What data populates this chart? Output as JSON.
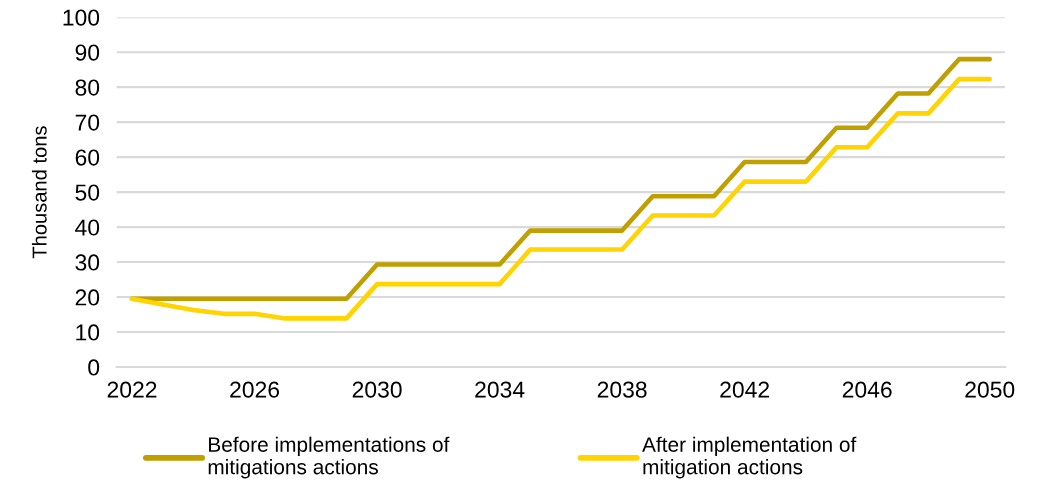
{
  "chart_data": {
    "type": "line",
    "ylabel": "Thousand tons",
    "categories": [
      "2022",
      null,
      null,
      null,
      "2026",
      null,
      null,
      null,
      "2030",
      null,
      null,
      null,
      "2034",
      null,
      null,
      null,
      "2038",
      null,
      null,
      null,
      "2042",
      null,
      null,
      null,
      "2046",
      null,
      null,
      null,
      "2050"
    ],
    "series": [
      {
        "name": "Before implementations of\nmitigations actions",
        "color": "#bfa000",
        "values": [
          19.5,
          19.5,
          19.5,
          19.5,
          19.5,
          19.5,
          19.5,
          19.5,
          29.3,
          29.3,
          29.3,
          29.3,
          29.3,
          39.0,
          39.0,
          39.0,
          39.0,
          48.8,
          48.8,
          48.8,
          58.6,
          58.6,
          58.6,
          68.4,
          68.4,
          78.2,
          78.2,
          88.0,
          88.0
        ]
      },
      {
        "name": "After implementation of\nmitigation actions",
        "color": "#ffd400",
        "values": [
          19.5,
          17.9,
          16.3,
          15.2,
          15.2,
          13.9,
          13.9,
          13.9,
          23.7,
          23.7,
          23.7,
          23.7,
          23.7,
          33.6,
          33.6,
          33.6,
          33.6,
          43.3,
          43.3,
          43.3,
          53.0,
          53.0,
          53.0,
          62.8,
          62.8,
          72.5,
          72.5,
          82.3,
          82.3
        ]
      }
    ],
    "ylim": [
      0,
      100
    ],
    "yticks": [
      0,
      10,
      20,
      30,
      40,
      50,
      60,
      70,
      80,
      90,
      100
    ],
    "grid": "y",
    "legend": "bottom",
    "line_style": "solid"
  }
}
